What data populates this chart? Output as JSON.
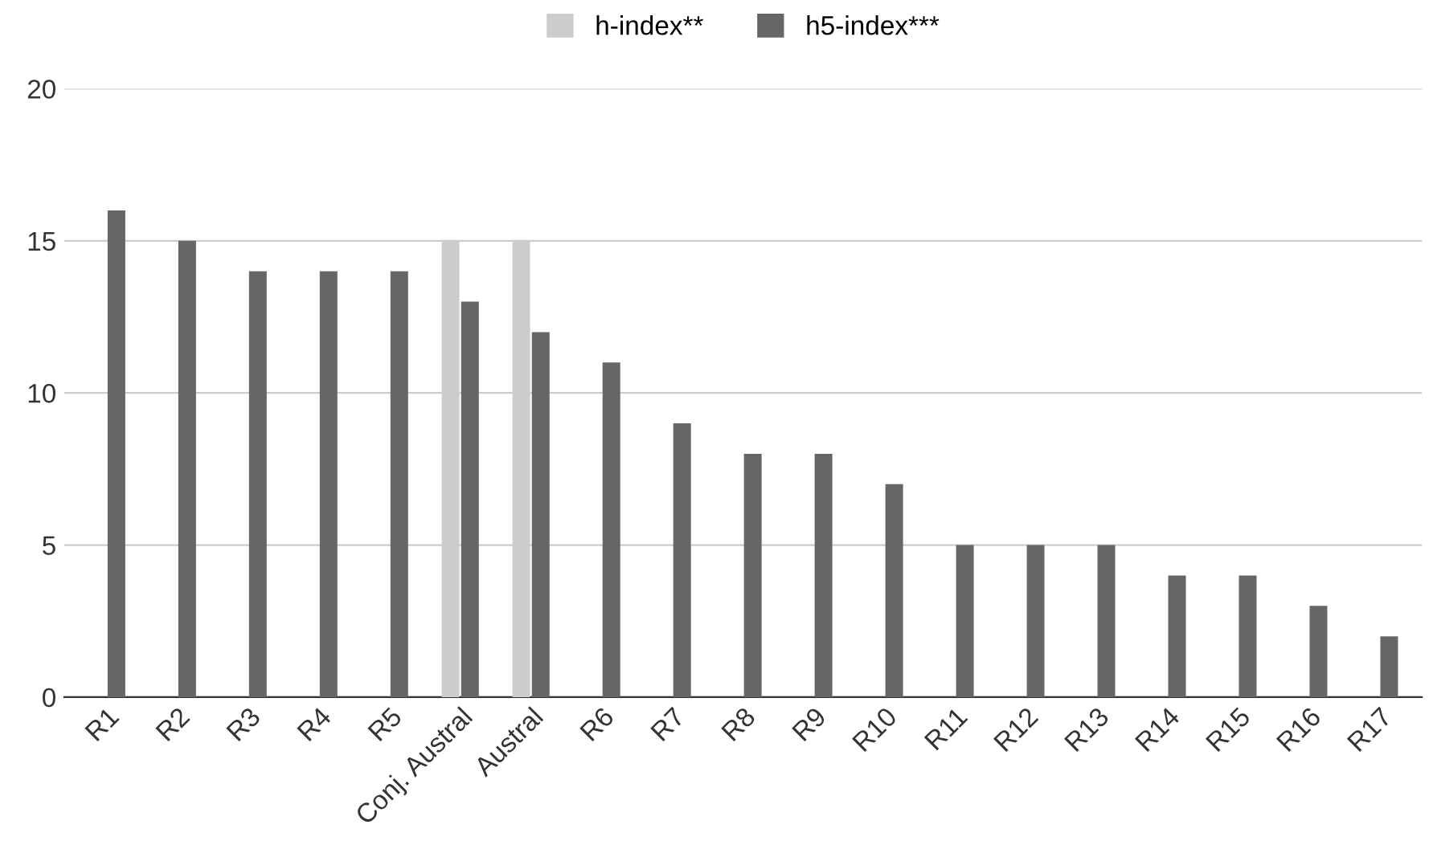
{
  "chart_data": {
    "type": "bar",
    "categories": [
      "R1",
      "R2",
      "R3",
      "R4",
      "R5",
      "Conj. Austral",
      "Austral",
      "R6",
      "R7",
      "R8",
      "R9",
      "R10",
      "R11",
      "R12",
      "R13",
      "R14",
      "R15",
      "R16",
      "R17"
    ],
    "series": [
      {
        "name": "h-index**",
        "color": "#cccccc",
        "values": [
          null,
          null,
          null,
          null,
          null,
          15,
          15,
          null,
          null,
          null,
          null,
          null,
          null,
          null,
          null,
          null,
          null,
          null,
          null
        ]
      },
      {
        "name": "h5-index***",
        "color": "#666666",
        "values": [
          16,
          15,
          14,
          14,
          14,
          13,
          12,
          11,
          9,
          8,
          8,
          7,
          5,
          5,
          5,
          4,
          4,
          3,
          2
        ]
      }
    ],
    "ylim": [
      0,
      20
    ],
    "yticks": [
      0,
      5,
      10,
      15,
      20
    ],
    "grid": "y",
    "legend": "top"
  }
}
